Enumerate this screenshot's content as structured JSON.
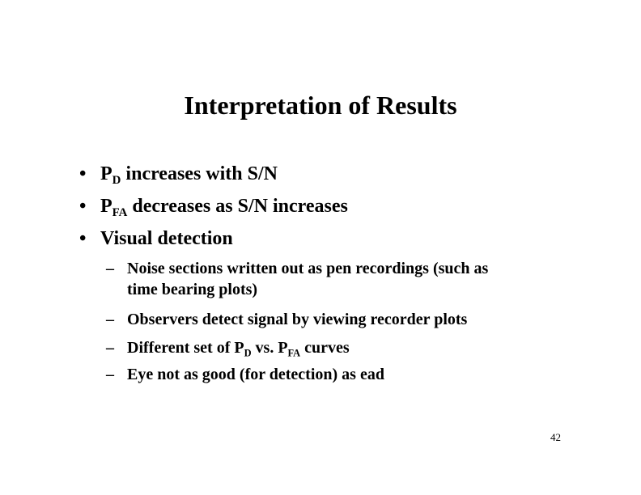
{
  "slide": {
    "title": "Interpretation of Results",
    "page_number": "42",
    "bullet_glyph": "•",
    "dash_glyph": "–",
    "bullets": [
      {
        "pre": "P",
        "sub": "D",
        "post": " increases with S/N"
      },
      {
        "pre": "P",
        "sub": "FA",
        "post": " decreases as S/N increases"
      },
      {
        "text": "Visual detection"
      }
    ],
    "subbullets": [
      {
        "line1": "Noise sections written out as pen recordings (such as",
        "line2": "time bearing plots)"
      },
      {
        "text": "Observers detect signal by viewing recorder plots"
      },
      {
        "pre": "Different set of P",
        "sub1": "D",
        "mid": " vs. P",
        "sub2": "FA",
        "post": " curves"
      },
      {
        "text": "Eye not as good (for detection) as ead"
      }
    ]
  }
}
